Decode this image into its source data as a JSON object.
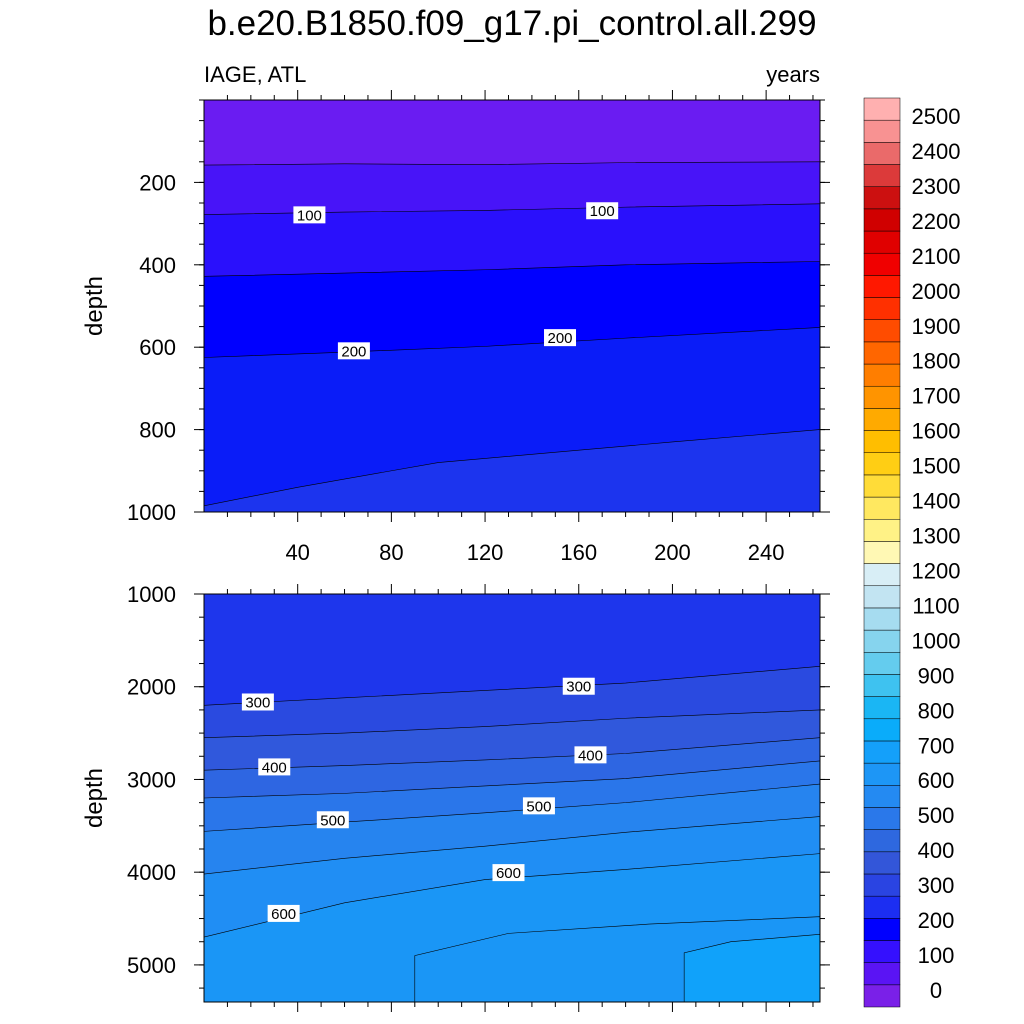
{
  "title": "b.e20.B1850.f09_g17.pi_control.all.299",
  "variable_label": "IAGE, ATL",
  "units_label": "years",
  "colorbar": {
    "labels": [
      "2500",
      "2400",
      "2300",
      "2200",
      "2100",
      "2000",
      "1900",
      "1800",
      "1700",
      "1600",
      "1500",
      "1400",
      "1300",
      "1200",
      "1100",
      "1000",
      "900",
      "800",
      "700",
      "600",
      "500",
      "400",
      "300",
      "200",
      "100",
      "0"
    ],
    "colors": [
      "#7a20e8",
      "#5a14f4",
      "#3510fe",
      "#0000ff",
      "#1c2ef2",
      "#2a44e2",
      "#3356d9",
      "#2e68df",
      "#2a78ea",
      "#248af2",
      "#1d96f6",
      "#14a0fa",
      "#0aacfa",
      "#1ab6f4",
      "#3ec2f0",
      "#64ccee",
      "#86d4ee",
      "#a6dcf0",
      "#c2e4f2",
      "#d8eef6",
      "#fff8b4",
      "#fff286",
      "#ffe860",
      "#ffdc38",
      "#ffce14",
      "#ffbe00",
      "#ffaa00",
      "#ff9400",
      "#ff7e00",
      "#ff6600",
      "#ff4c00",
      "#ff3000",
      "#ff1800",
      "#f00000",
      "#e00000",
      "#d00000",
      "#cc1010",
      "#dc3a3a",
      "#ea6a6a",
      "#f89292",
      "#ffb0b0"
    ]
  },
  "chart_data": [
    {
      "type": "contour",
      "panel": "upper",
      "xlabel": "",
      "ylabel": "depth",
      "xlim": [
        0,
        263
      ],
      "ylim": [
        1000,
        0
      ],
      "xticks": [
        "40",
        "80",
        "120",
        "160",
        "200",
        "240"
      ],
      "yticks": [
        "200",
        "400",
        "600",
        "800",
        "1000"
      ],
      "contour_labels": [
        {
          "text": "100",
          "x": 45,
          "y": 280
        },
        {
          "text": "100",
          "x": 170,
          "y": 270
        },
        {
          "text": "200",
          "x": 64,
          "y": 610
        },
        {
          "text": "200",
          "x": 152,
          "y": 578
        }
      ],
      "contours": [
        {
          "level": 50,
          "points": [
            [
              0,
              158
            ],
            [
              60,
              155
            ],
            [
              120,
              157
            ],
            [
              180,
              152
            ],
            [
              263,
              150
            ]
          ]
        },
        {
          "level": 100,
          "points": [
            [
              0,
              278
            ],
            [
              60,
              272
            ],
            [
              120,
              268
            ],
            [
              180,
              260
            ],
            [
              263,
              252
            ]
          ]
        },
        {
          "level": 150,
          "points": [
            [
              0,
              428
            ],
            [
              60,
              420
            ],
            [
              120,
              412
            ],
            [
              180,
              400
            ],
            [
              263,
              392
            ]
          ]
        },
        {
          "level": 200,
          "points": [
            [
              0,
              625
            ],
            [
              60,
              612
            ],
            [
              120,
              598
            ],
            [
              180,
              578
            ],
            [
              263,
              552
            ]
          ]
        },
        {
          "level": 250,
          "points": [
            [
              0,
              985
            ],
            [
              40,
              940
            ],
            [
              100,
              880
            ],
            [
              160,
              850
            ],
            [
              200,
              830
            ],
            [
              263,
              800
            ]
          ]
        }
      ],
      "bands": [
        {
          "from": 0,
          "to": 50,
          "color": "#6a1cf2"
        },
        {
          "from": 50,
          "to": 100,
          "color": "#4814f8"
        },
        {
          "from": 100,
          "to": 150,
          "color": "#2a10fc"
        },
        {
          "from": 150,
          "to": 200,
          "color": "#0000ff"
        },
        {
          "from": 200,
          "to": 250,
          "color": "#0a1cf8"
        },
        {
          "from": 250,
          "to": 300,
          "color": "#1c34ee"
        }
      ]
    },
    {
      "type": "contour",
      "panel": "lower",
      "xlabel": "",
      "ylabel": "depth",
      "xlim": [
        0,
        263
      ],
      "ylim": [
        5400,
        1000
      ],
      "xticks": [],
      "yticks": [
        "1000",
        "2000",
        "3000",
        "4000",
        "5000"
      ],
      "contour_labels": [
        {
          "text": "300",
          "x": 23,
          "y": 2170
        },
        {
          "text": "300",
          "x": 160,
          "y": 2000
        },
        {
          "text": "400",
          "x": 30,
          "y": 2870
        },
        {
          "text": "400",
          "x": 165,
          "y": 2740
        },
        {
          "text": "500",
          "x": 55,
          "y": 3440
        },
        {
          "text": "500",
          "x": 143,
          "y": 3290
        },
        {
          "text": "600",
          "x": 34,
          "y": 4450
        },
        {
          "text": "600",
          "x": 130,
          "y": 4010
        }
      ],
      "contours": [
        {
          "level": 300,
          "points": [
            [
              0,
              2200
            ],
            [
              60,
              2120
            ],
            [
              120,
              2040
            ],
            [
              180,
              1960
            ],
            [
              263,
              1780
            ]
          ]
        },
        {
          "level": 350,
          "points": [
            [
              0,
              2550
            ],
            [
              60,
              2500
            ],
            [
              120,
              2430
            ],
            [
              180,
              2340
            ],
            [
              263,
              2250
            ]
          ]
        },
        {
          "level": 400,
          "points": [
            [
              0,
              2900
            ],
            [
              60,
              2850
            ],
            [
              120,
              2790
            ],
            [
              180,
              2720
            ],
            [
              263,
              2550
            ]
          ]
        },
        {
          "level": 450,
          "points": [
            [
              0,
              3200
            ],
            [
              60,
              3150
            ],
            [
              120,
              3070
            ],
            [
              180,
              2990
            ],
            [
              263,
              2800
            ]
          ]
        },
        {
          "level": 500,
          "points": [
            [
              0,
              3560
            ],
            [
              60,
              3460
            ],
            [
              120,
              3360
            ],
            [
              180,
              3250
            ],
            [
              263,
              3050
            ]
          ]
        },
        {
          "level": 550,
          "points": [
            [
              0,
              4020
            ],
            [
              60,
              3850
            ],
            [
              120,
              3720
            ],
            [
              180,
              3570
            ],
            [
              263,
              3400
            ]
          ]
        },
        {
          "level": 600,
          "points": [
            [
              0,
              4700
            ],
            [
              60,
              4330
            ],
            [
              120,
              4080
            ],
            [
              180,
              3970
            ],
            [
              263,
              3800
            ]
          ]
        }
      ],
      "bands": [
        {
          "from": 250,
          "to": 300,
          "color": "#1e36ec"
        },
        {
          "from": 300,
          "to": 350,
          "color": "#2a4ae0"
        },
        {
          "from": 350,
          "to": 400,
          "color": "#3058dc"
        },
        {
          "from": 400,
          "to": 450,
          "color": "#2e66e2"
        },
        {
          "from": 450,
          "to": 500,
          "color": "#2a76ea"
        },
        {
          "from": 500,
          "to": 550,
          "color": "#2684ef"
        },
        {
          "from": 550,
          "to": 600,
          "color": "#208ef4"
        },
        {
          "from": 600,
          "to": 650,
          "color": "#1a96f6"
        },
        {
          "from": 650,
          "to": 700,
          "color": "#10a2fa"
        }
      ],
      "closed_regions": [
        {
          "level": 650,
          "points": [
            [
              90,
              5400
            ],
            [
              90,
              4900
            ],
            [
              130,
              4660
            ],
            [
              190,
              4560
            ],
            [
              263,
              4480
            ],
            [
              263,
              5400
            ]
          ]
        },
        {
          "level": 700,
          "points": [
            [
              205,
              5400
            ],
            [
              205,
              4870
            ],
            [
              225,
              4750
            ],
            [
              263,
              4670
            ],
            [
              263,
              5400
            ]
          ]
        }
      ]
    }
  ]
}
